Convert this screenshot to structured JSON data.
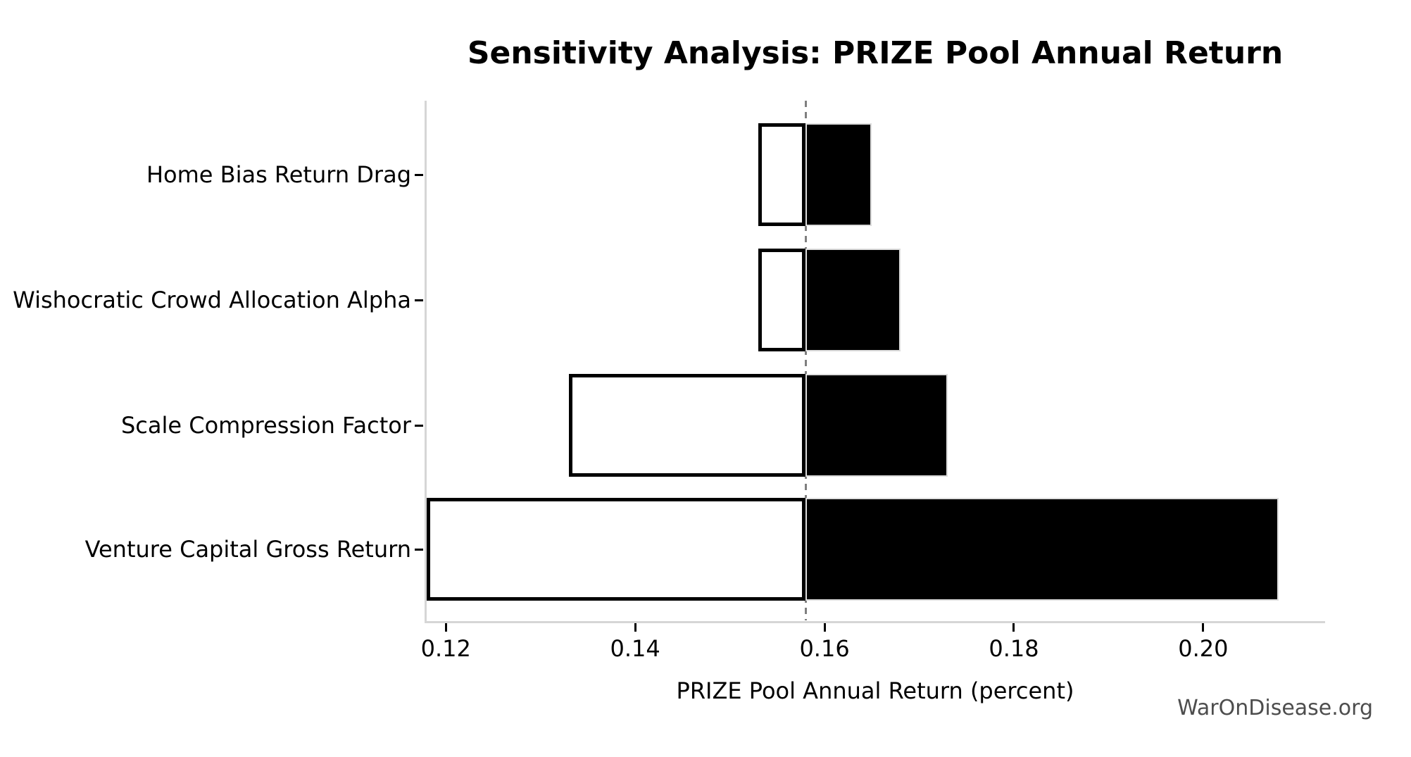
{
  "title": "Sensitivity Analysis: PRIZE Pool Annual Return",
  "watermark": "WarOnDisease.org",
  "colors": {
    "background": "#ffffff",
    "bar_high_fill": "#000000",
    "bar_low_fill": "#ffffff",
    "bar_low_edge": "#000000",
    "bar_high_edge": "#dcdcdc",
    "baseline_line": "#7f7f7f",
    "spine": "#d6d6d6",
    "tick": "#000000",
    "text": "#000000",
    "watermark_text": "#4d4d4d"
  },
  "chart_data": {
    "type": "bar",
    "subtype": "tornado-horizontal",
    "title": "Sensitivity Analysis: PRIZE Pool Annual Return",
    "xlabel": "PRIZE Pool Annual Return (percent)",
    "ylabel": "",
    "baseline": 0.158,
    "xlim": [
      0.1179,
      0.2128
    ],
    "xticks": [
      0.12,
      0.14,
      0.16,
      0.18,
      0.2
    ],
    "xtick_labels": [
      "0.12",
      "0.14",
      "0.16",
      "0.18",
      "0.20"
    ],
    "grid": false,
    "legend": false,
    "baseline_style": "dashed-gray-vertical",
    "categories": [
      "Home Bias Return Drag",
      "Wishocratic Crowd Allocation Alpha",
      "Scale Compression Factor",
      "Venture Capital Gross Return"
    ],
    "series": [
      {
        "name": "low",
        "values": [
          0.153,
          0.153,
          0.133,
          0.118
        ]
      },
      {
        "name": "high",
        "values": [
          0.165,
          0.168,
          0.173,
          0.208
        ]
      }
    ]
  }
}
